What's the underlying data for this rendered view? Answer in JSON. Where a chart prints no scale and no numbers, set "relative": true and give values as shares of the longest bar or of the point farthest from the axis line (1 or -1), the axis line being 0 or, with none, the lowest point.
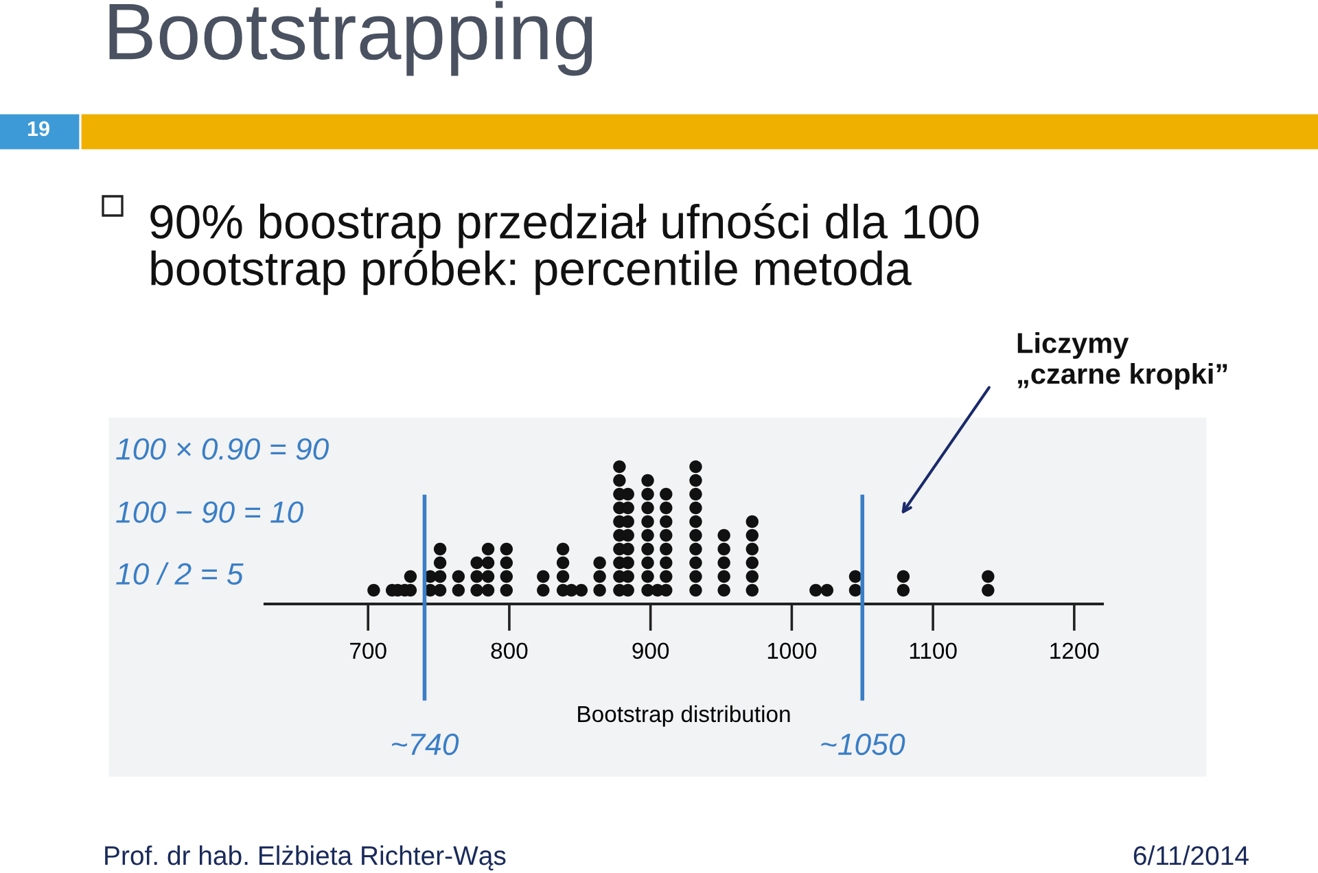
{
  "chart_data": {
    "type": "scatter",
    "title": "Bootstrapping",
    "subtitle": "90% boostrap przedział ufności dla 100\nbootstrap próbek: percentile metoda",
    "xlabel": "Bootstrap distribution",
    "relative": true,
    "marker": "circle",
    "grid": false,
    "legend": false,
    "tick_labels": "x",
    "xlim": [
      627,
      1220
    ],
    "xticks": [
      700,
      800,
      900,
      1000,
      1100,
      1200
    ],
    "series": [
      {
        "color": "#111111",
        "x": [
          704,
          717,
          721,
          726,
          730,
          730,
          744,
          744,
          751,
          751,
          751,
          751,
          764,
          764,
          777,
          777,
          777,
          785,
          785,
          785,
          785,
          798,
          798,
          798,
          798,
          824,
          824,
          838,
          838,
          838,
          838,
          844,
          851,
          864,
          864,
          864,
          878,
          878,
          878,
          878,
          878,
          878,
          878,
          878,
          878,
          878,
          884,
          884,
          884,
          884,
          884,
          884,
          884,
          884,
          898,
          898,
          898,
          898,
          898,
          898,
          898,
          898,
          898,
          905,
          911,
          911,
          911,
          911,
          911,
          911,
          911,
          911,
          932,
          932,
          932,
          932,
          932,
          932,
          932,
          932,
          932,
          932,
          952,
          952,
          952,
          952,
          952,
          972,
          972,
          972,
          972,
          972,
          972,
          1017,
          1025,
          1045,
          1045,
          1079,
          1079,
          1139,
          1139
        ],
        "values": [
          0.1,
          0.1,
          0.1,
          0.1,
          0.1,
          0.2,
          0.1,
          0.2,
          0.1,
          0.2,
          0.3,
          0.4,
          0.1,
          0.2,
          0.1,
          0.2,
          0.3,
          0.1,
          0.2,
          0.3,
          0.4,
          0.1,
          0.2,
          0.3,
          0.4,
          0.1,
          0.2,
          0.1,
          0.2,
          0.3,
          0.4,
          0.1,
          0.1,
          0.1,
          0.2,
          0.3,
          0.1,
          0.2,
          0.3,
          0.4,
          0.5,
          0.6,
          0.7,
          0.8,
          0.9,
          1.0,
          0.1,
          0.2,
          0.3,
          0.4,
          0.5,
          0.6,
          0.7,
          0.8,
          0.1,
          0.2,
          0.3,
          0.4,
          0.5,
          0.6,
          0.7,
          0.8,
          0.9,
          0.1,
          0.1,
          0.2,
          0.3,
          0.4,
          0.5,
          0.6,
          0.7,
          0.8,
          0.1,
          0.2,
          0.3,
          0.4,
          0.5,
          0.6,
          0.7,
          0.8,
          0.9,
          1.0,
          0.1,
          0.2,
          0.3,
          0.4,
          0.5,
          0.1,
          0.2,
          0.3,
          0.4,
          0.5,
          0.6,
          0.1,
          0.1,
          0.1,
          0.2,
          0.1,
          0.2,
          0.1,
          0.2
        ]
      }
    ],
    "ref_lines": [
      {
        "axis": "x",
        "value": 740,
        "label": "~740",
        "color": "#3a7ec6"
      },
      {
        "axis": "x",
        "value": 1050,
        "label": "~1050",
        "color": "#3a7ec6"
      }
    ],
    "annotations": [
      "19",
      "100 × 0.90 = 90",
      "100 − 90 = 10",
      "10 / 2 = 5",
      "Liczymy\n„czarne kropki”",
      "Prof. dr hab. Elżbieta Richter-Wąs",
      "6/11/2014"
    ]
  }
}
